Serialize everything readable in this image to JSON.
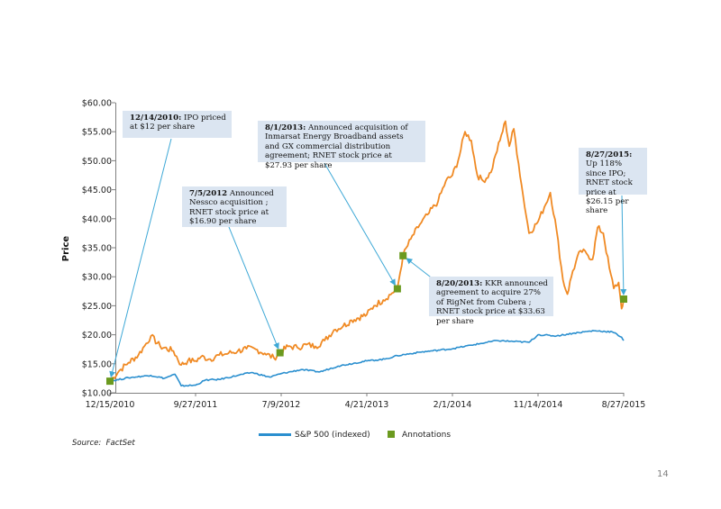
{
  "chart_data": {
    "type": "line",
    "ylabel": "Price",
    "xlabel": "",
    "ylim": [
      10,
      60
    ],
    "x_ticks": [
      "12/15/2010",
      "9/27/2011",
      "7/9/2012",
      "4/21/2013",
      "2/1/2014",
      "11/14/2014",
      "8/27/2015"
    ],
    "y_ticks": [
      "$10.00",
      "$15.00",
      "$20.00",
      "$25.00",
      "$30.00",
      "$35.00",
      "$40.00",
      "$45.00",
      "$50.00",
      "$55.00",
      "$60.00"
    ],
    "grid": false,
    "legend_position": "bottom",
    "series": [
      {
        "name": "",
        "color": "#f08a24",
        "points": [
          [
            "12/15/2010",
            12.0
          ],
          [
            "2011-01-15",
            13.8
          ],
          [
            "2011-02-15",
            15.2
          ],
          [
            "2011-03-20",
            16.5
          ],
          [
            "2011-04-15",
            18.5
          ],
          [
            "2011-05-01",
            19.8
          ],
          [
            "2011-06-01",
            18.0
          ],
          [
            "2011-07-15",
            17.2
          ],
          [
            "2011-08-10",
            14.8
          ],
          [
            "2011-09-01",
            15.5
          ],
          [
            "9/27/2011",
            15.5
          ],
          [
            "2011-10-15",
            16.2
          ],
          [
            "2011-11-15",
            15.8
          ],
          [
            "2011-12-15",
            16.5
          ],
          [
            "2012-01-15",
            16.8
          ],
          [
            "2012-02-15",
            17.2
          ],
          [
            "2012-03-15",
            17.6
          ],
          [
            "2012-04-15",
            17.5
          ],
          [
            "2012-05-15",
            16.8
          ],
          [
            "2012-06-15",
            16.0
          ],
          [
            "7/5/2012",
            16.9
          ],
          [
            "2012-08-01",
            18.0
          ],
          [
            "2012-09-01",
            17.8
          ],
          [
            "2012-10-01",
            18.3
          ],
          [
            "2012-11-01",
            18.0
          ],
          [
            "2012-12-01",
            19.0
          ],
          [
            "2013-01-01",
            20.8
          ],
          [
            "2013-02-01",
            21.5
          ],
          [
            "2013-03-01",
            22.5
          ],
          [
            "4/21/2013",
            23.5
          ],
          [
            "2013-05-15",
            25.0
          ],
          [
            "2013-06-15",
            26.0
          ],
          [
            "2013-07-15",
            27.2
          ],
          [
            "8/1/2013",
            27.93
          ],
          [
            "8/20/2013",
            33.63
          ],
          [
            "2013-09-15",
            36.5
          ],
          [
            "2013-10-15",
            39.0
          ],
          [
            "2013-11-15",
            41.0
          ],
          [
            "2013-12-15",
            43.0
          ],
          [
            "2014-01-10",
            46.5
          ],
          [
            "2/1/2014",
            47.5
          ],
          [
            "2014-02-20",
            50.0
          ],
          [
            "2014-03-15",
            55.0
          ],
          [
            "2014-04-05",
            53.5
          ],
          [
            "2014-04-25",
            47.5
          ],
          [
            "2014-05-15",
            46.5
          ],
          [
            "2014-06-10",
            48.0
          ],
          [
            "2014-06-25",
            51.0
          ],
          [
            "2014-07-10",
            53.5
          ],
          [
            "2014-07-28",
            56.8
          ],
          [
            "2014-08-10",
            52.5
          ],
          [
            "2014-08-25",
            55.5
          ],
          [
            "2014-09-10",
            49.5
          ],
          [
            "2014-09-25",
            44.0
          ],
          [
            "2014-10-15",
            37.5
          ],
          [
            "11/14/2014",
            39.5
          ],
          [
            "2014-12-05",
            42.0
          ],
          [
            "2014-12-25",
            44.5
          ],
          [
            "2015-01-15",
            38.0
          ],
          [
            "2015-02-05",
            29.5
          ],
          [
            "2015-02-20",
            27.0
          ],
          [
            "2015-03-10",
            31.0
          ],
          [
            "2015-04-05",
            34.5
          ],
          [
            "2015-04-25",
            34.0
          ],
          [
            "2015-05-15",
            33.0
          ],
          [
            "2015-06-01",
            38.5
          ],
          [
            "2015-06-20",
            37.5
          ],
          [
            "2015-07-10",
            31.5
          ],
          [
            "2015-07-25",
            28.0
          ],
          [
            "2015-08-10",
            29.0
          ],
          [
            "2015-08-20",
            24.5
          ],
          [
            "8/27/2015",
            26.15
          ]
        ]
      },
      {
        "name": "S&P 500 (indexed)",
        "color": "#2a8fcf",
        "points": [
          [
            "12/15/2010",
            12.0
          ],
          [
            "2011-02-15",
            12.6
          ],
          [
            "2011-04-30",
            13.0
          ],
          [
            "2011-06-15",
            12.5
          ],
          [
            "2011-07-20",
            13.2
          ],
          [
            "2011-08-10",
            11.2
          ],
          [
            "9/27/2011",
            11.3
          ],
          [
            "2011-10-30",
            12.2
          ],
          [
            "2011-12-15",
            12.3
          ],
          [
            "2012-02-15",
            13.0
          ],
          [
            "2012-04-01",
            13.5
          ],
          [
            "2012-06-01",
            12.7
          ],
          [
            "7/9/2012",
            13.3
          ],
          [
            "2012-09-15",
            14.0
          ],
          [
            "2012-11-15",
            13.6
          ],
          [
            "2013-01-15",
            14.6
          ],
          [
            "4/21/2013",
            15.5
          ],
          [
            "2013-06-20",
            15.8
          ],
          [
            "2013-08-01",
            16.4
          ],
          [
            "2013-10-15",
            17.0
          ],
          [
            "2/1/2014",
            17.6
          ],
          [
            "2014-04-15",
            18.3
          ],
          [
            "2014-07-01",
            19.0
          ],
          [
            "2014-10-15",
            18.7
          ],
          [
            "11/14/2014",
            20.0
          ],
          [
            "2015-01-15",
            19.8
          ],
          [
            "2015-03-15",
            20.3
          ],
          [
            "2015-05-20",
            20.7
          ],
          [
            "2015-07-20",
            20.5
          ],
          [
            "2015-08-20",
            19.6
          ],
          [
            "8/27/2015",
            19.0
          ]
        ]
      }
    ],
    "annotations": [
      {
        "date": "12/15/2010",
        "value": 12.0,
        "text_date": "12/14/2010:",
        "text_body": " IPO priced at $12 per share",
        "color": "#6b9a1f"
      },
      {
        "date": "7/5/2012",
        "value": 16.9,
        "text_date": "7/5/2012",
        "text_body": " Announced Nessco acquisition ; RNET stock price at $16.90 per share",
        "color": "#6b9a1f"
      },
      {
        "date": "8/1/2013",
        "value": 27.93,
        "text_date": "8/1/2013:",
        "text_body": "  Announced acquisition of Inmarsat Energy Broadband assets and GX commercial distribution agreement; RNET stock price at $27.93 per share",
        "color": "#6b9a1f"
      },
      {
        "date": "8/20/2013",
        "value": 33.63,
        "text_date": "8/20/2013:",
        "text_body": " KKR announced agreement to acquire 27% of RigNet from Cubera ; RNET stock price at $33.63 per share",
        "color": "#6b9a1f"
      },
      {
        "date": "8/27/2015",
        "value": 26.15,
        "text_date": "8/27/2015:",
        "text_body": "  Up 118% since IPO; RNET stock price at $26.15 per share",
        "color": "#6b9a1f"
      }
    ],
    "legend": [
      {
        "label": "S&P 500 (indexed)",
        "color": "#2a8fcf",
        "marker": "line"
      },
      {
        "label": "Annotations",
        "color": "#6b9a1f",
        "marker": "square"
      }
    ]
  },
  "footer": {
    "source_label": "Source:",
    "source_value": "FactSet",
    "page_number": "14"
  }
}
